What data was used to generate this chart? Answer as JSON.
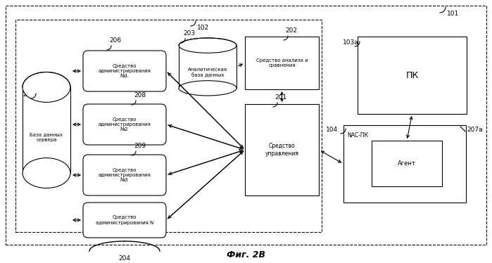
{
  "fig_title": "Фиг. 2B",
  "label_101": "101",
  "label_102": "102",
  "label_103a": "103a",
  "label_104": "104",
  "label_201": "201",
  "label_202": "202",
  "label_203": "203",
  "label_204": "204",
  "label_205": "205",
  "label_206": "206",
  "label_207a": "207a",
  "label_208": "208",
  "label_209": "209",
  "text_db": "База данных\nсервера",
  "text_anal_db": "Аналитическая\nбаза данных",
  "text_adm1": "Средство\nадминистрирования\n№1",
  "text_adm2": "Средство\nадминистрирования\n№2",
  "text_adm3": "Средство\nадминистрирования\n№3",
  "text_admN": "Средство\nадминистрирования N",
  "text_ctrl": "Средство\nуправления",
  "text_anl": "Средство анализа и\nсравнения",
  "text_pk": "ПК",
  "text_nac": "NAC-ПК",
  "text_agent": "Агент"
}
